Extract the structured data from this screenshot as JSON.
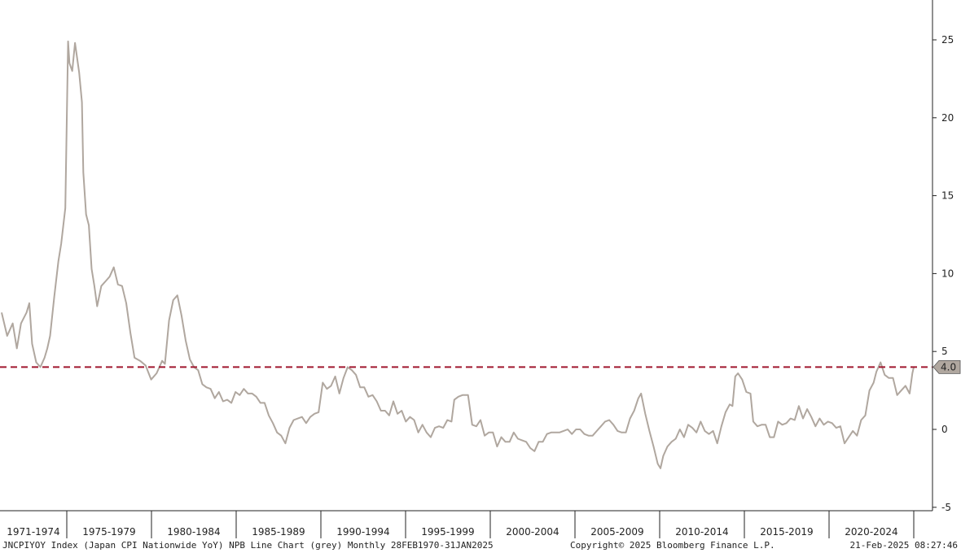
{
  "footer": {
    "left": "JNCPIYOY Index (Japan CPI Nationwide YoY) NPB Line Chart (grey)  Monthly 28FEB1970-31JAN2025",
    "copyright": "Copyright© 2025 Bloomberg Finance L.P.",
    "timestamp": "21-Feb-2025 08:27:46"
  },
  "colors": {
    "series": "#b0a79f",
    "reference_line": "#a0172e",
    "axis": "#222222",
    "marker_bg": "#b0a79f"
  },
  "chart_data": {
    "type": "line",
    "title": "",
    "xlabel": "",
    "ylabel": "",
    "grid": false,
    "legend": "none",
    "ylim": [
      -5,
      27.5
    ],
    "xlim": [
      "1970-02",
      "2025-01"
    ],
    "y_ticks": [
      -5,
      0,
      5,
      10,
      15,
      20,
      25
    ],
    "x_period_labels": [
      "1971-1974",
      "1975-1979",
      "1980-1984",
      "1985-1989",
      "1990-1994",
      "1995-1999",
      "2000-2004",
      "2005-2009",
      "2010-2014",
      "2015-2019",
      "2020-2024"
    ],
    "reference_line": {
      "value": 4.0,
      "label": "4.0"
    },
    "series": [
      {
        "points": [
          [
            "1970-02",
            7.5
          ],
          [
            "1970-06",
            6.0
          ],
          [
            "1970-10",
            6.8
          ],
          [
            "1971-01",
            5.2
          ],
          [
            "1971-04",
            6.8
          ],
          [
            "1971-08",
            7.5
          ],
          [
            "1971-10",
            8.1
          ],
          [
            "1971-12",
            5.5
          ],
          [
            "1972-03",
            4.3
          ],
          [
            "1972-06",
            4.0
          ],
          [
            "1972-09",
            4.6
          ],
          [
            "1972-11",
            5.2
          ],
          [
            "1973-01",
            6.0
          ],
          [
            "1973-04",
            8.5
          ],
          [
            "1973-07",
            10.8
          ],
          [
            "1973-09",
            11.9
          ],
          [
            "1973-12",
            14.2
          ],
          [
            "1974-02",
            24.9
          ],
          [
            "1974-03",
            23.5
          ],
          [
            "1974-05",
            23.0
          ],
          [
            "1974-07",
            24.8
          ],
          [
            "1974-10",
            22.9
          ],
          [
            "1974-12",
            21.0
          ],
          [
            "1975-01",
            16.5
          ],
          [
            "1975-03",
            13.8
          ],
          [
            "1975-05",
            13.1
          ],
          [
            "1975-07",
            10.3
          ],
          [
            "1975-09",
            9.2
          ],
          [
            "1975-11",
            7.9
          ],
          [
            "1976-02",
            9.2
          ],
          [
            "1976-05",
            9.5
          ],
          [
            "1976-08",
            9.8
          ],
          [
            "1976-11",
            10.4
          ],
          [
            "1977-02",
            9.3
          ],
          [
            "1977-05",
            9.2
          ],
          [
            "1977-08",
            8.1
          ],
          [
            "1977-11",
            6.2
          ],
          [
            "1978-02",
            4.6
          ],
          [
            "1978-06",
            4.4
          ],
          [
            "1978-10",
            4.1
          ],
          [
            "1979-02",
            3.2
          ],
          [
            "1979-06",
            3.6
          ],
          [
            "1979-10",
            4.4
          ],
          [
            "1979-12",
            4.2
          ],
          [
            "1980-03",
            7.0
          ],
          [
            "1980-06",
            8.3
          ],
          [
            "1980-09",
            8.6
          ],
          [
            "1980-12",
            7.3
          ],
          [
            "1981-03",
            5.7
          ],
          [
            "1981-06",
            4.5
          ],
          [
            "1981-09",
            4.0
          ],
          [
            "1981-12",
            3.8
          ],
          [
            "1982-03",
            2.9
          ],
          [
            "1982-06",
            2.7
          ],
          [
            "1982-09",
            2.6
          ],
          [
            "1982-12",
            2.0
          ],
          [
            "1983-03",
            2.4
          ],
          [
            "1983-06",
            1.8
          ],
          [
            "1983-09",
            1.9
          ],
          [
            "1983-12",
            1.7
          ],
          [
            "1984-03",
            2.4
          ],
          [
            "1984-06",
            2.2
          ],
          [
            "1984-09",
            2.6
          ],
          [
            "1984-12",
            2.3
          ],
          [
            "1985-03",
            2.3
          ],
          [
            "1985-06",
            2.1
          ],
          [
            "1985-09",
            1.7
          ],
          [
            "1985-12",
            1.7
          ],
          [
            "1986-03",
            0.9
          ],
          [
            "1986-06",
            0.4
          ],
          [
            "1986-09",
            -0.2
          ],
          [
            "1986-12",
            -0.4
          ],
          [
            "1987-03",
            -0.9
          ],
          [
            "1987-06",
            0.1
          ],
          [
            "1987-09",
            0.6
          ],
          [
            "1987-12",
            0.7
          ],
          [
            "1988-03",
            0.8
          ],
          [
            "1988-06",
            0.4
          ],
          [
            "1988-09",
            0.8
          ],
          [
            "1988-12",
            1.0
          ],
          [
            "1989-03",
            1.1
          ],
          [
            "1989-06",
            3.0
          ],
          [
            "1989-09",
            2.6
          ],
          [
            "1989-12",
            2.8
          ],
          [
            "1990-03",
            3.4
          ],
          [
            "1990-06",
            2.3
          ],
          [
            "1990-09",
            3.3
          ],
          [
            "1990-12",
            4.0
          ],
          [
            "1991-03",
            3.8
          ],
          [
            "1991-06",
            3.5
          ],
          [
            "1991-09",
            2.7
          ],
          [
            "1991-12",
            2.7
          ],
          [
            "1992-03",
            2.1
          ],
          [
            "1992-06",
            2.2
          ],
          [
            "1992-09",
            1.8
          ],
          [
            "1992-12",
            1.2
          ],
          [
            "1993-03",
            1.2
          ],
          [
            "1993-06",
            0.9
          ],
          [
            "1993-09",
            1.8
          ],
          [
            "1993-12",
            1.0
          ],
          [
            "1994-03",
            1.2
          ],
          [
            "1994-06",
            0.5
          ],
          [
            "1994-09",
            0.8
          ],
          [
            "1994-12",
            0.6
          ],
          [
            "1995-03",
            -0.2
          ],
          [
            "1995-06",
            0.3
          ],
          [
            "1995-09",
            -0.2
          ],
          [
            "1995-12",
            -0.5
          ],
          [
            "1996-03",
            0.1
          ],
          [
            "1996-06",
            0.2
          ],
          [
            "1996-09",
            0.1
          ],
          [
            "1996-12",
            0.6
          ],
          [
            "1997-03",
            0.5
          ],
          [
            "1997-05",
            1.9
          ],
          [
            "1997-08",
            2.1
          ],
          [
            "1997-11",
            2.2
          ],
          [
            "1998-03",
            2.2
          ],
          [
            "1998-06",
            0.3
          ],
          [
            "1998-09",
            0.2
          ],
          [
            "1998-12",
            0.6
          ],
          [
            "1999-03",
            -0.4
          ],
          [
            "1999-06",
            -0.2
          ],
          [
            "1999-09",
            -0.2
          ],
          [
            "1999-12",
            -1.1
          ],
          [
            "2000-03",
            -0.5
          ],
          [
            "2000-06",
            -0.8
          ],
          [
            "2000-09",
            -0.8
          ],
          [
            "2000-12",
            -0.2
          ],
          [
            "2001-03",
            -0.6
          ],
          [
            "2001-06",
            -0.7
          ],
          [
            "2001-09",
            -0.8
          ],
          [
            "2001-12",
            -1.2
          ],
          [
            "2002-03",
            -1.4
          ],
          [
            "2002-06",
            -0.8
          ],
          [
            "2002-09",
            -0.8
          ],
          [
            "2002-12",
            -0.3
          ],
          [
            "2003-03",
            -0.2
          ],
          [
            "2003-06",
            -0.2
          ],
          [
            "2003-09",
            -0.2
          ],
          [
            "2003-12",
            -0.1
          ],
          [
            "2004-03",
            0.0
          ],
          [
            "2004-06",
            -0.3
          ],
          [
            "2004-09",
            0.0
          ],
          [
            "2004-12",
            0.0
          ],
          [
            "2005-03",
            -0.3
          ],
          [
            "2005-06",
            -0.4
          ],
          [
            "2005-09",
            -0.4
          ],
          [
            "2005-12",
            -0.1
          ],
          [
            "2006-03",
            0.2
          ],
          [
            "2006-06",
            0.5
          ],
          [
            "2006-09",
            0.6
          ],
          [
            "2006-12",
            0.3
          ],
          [
            "2007-03",
            -0.1
          ],
          [
            "2007-06",
            -0.2
          ],
          [
            "2007-09",
            -0.2
          ],
          [
            "2007-12",
            0.7
          ],
          [
            "2008-03",
            1.2
          ],
          [
            "2008-06",
            2.0
          ],
          [
            "2008-08",
            2.3
          ],
          [
            "2008-11",
            1.0
          ],
          [
            "2009-02",
            -0.1
          ],
          [
            "2009-05",
            -1.1
          ],
          [
            "2009-08",
            -2.2
          ],
          [
            "2009-10",
            -2.5
          ],
          [
            "2009-12",
            -1.7
          ],
          [
            "2010-03",
            -1.1
          ],
          [
            "2010-06",
            -0.8
          ],
          [
            "2010-09",
            -0.6
          ],
          [
            "2010-12",
            0.0
          ],
          [
            "2011-03",
            -0.5
          ],
          [
            "2011-06",
            0.3
          ],
          [
            "2011-09",
            0.1
          ],
          [
            "2011-12",
            -0.2
          ],
          [
            "2012-03",
            0.5
          ],
          [
            "2012-06",
            -0.1
          ],
          [
            "2012-09",
            -0.3
          ],
          [
            "2012-12",
            -0.1
          ],
          [
            "2013-03",
            -0.9
          ],
          [
            "2013-06",
            0.2
          ],
          [
            "2013-09",
            1.1
          ],
          [
            "2013-12",
            1.6
          ],
          [
            "2014-02",
            1.5
          ],
          [
            "2014-04",
            3.4
          ],
          [
            "2014-06",
            3.6
          ],
          [
            "2014-09",
            3.2
          ],
          [
            "2014-12",
            2.4
          ],
          [
            "2015-03",
            2.3
          ],
          [
            "2015-05",
            0.5
          ],
          [
            "2015-08",
            0.2
          ],
          [
            "2015-11",
            0.3
          ],
          [
            "2016-02",
            0.3
          ],
          [
            "2016-05",
            -0.5
          ],
          [
            "2016-08",
            -0.5
          ],
          [
            "2016-11",
            0.5
          ],
          [
            "2017-02",
            0.3
          ],
          [
            "2017-05",
            0.4
          ],
          [
            "2017-08",
            0.7
          ],
          [
            "2017-11",
            0.6
          ],
          [
            "2018-02",
            1.5
          ],
          [
            "2018-05",
            0.7
          ],
          [
            "2018-08",
            1.3
          ],
          [
            "2018-11",
            0.8
          ],
          [
            "2019-02",
            0.2
          ],
          [
            "2019-05",
            0.7
          ],
          [
            "2019-08",
            0.3
          ],
          [
            "2019-11",
            0.5
          ],
          [
            "2020-02",
            0.4
          ],
          [
            "2020-05",
            0.1
          ],
          [
            "2020-08",
            0.2
          ],
          [
            "2020-11",
            -0.9
          ],
          [
            "2021-02",
            -0.5
          ],
          [
            "2021-05",
            -0.1
          ],
          [
            "2021-08",
            -0.4
          ],
          [
            "2021-11",
            0.6
          ],
          [
            "2022-02",
            0.9
          ],
          [
            "2022-05",
            2.5
          ],
          [
            "2022-08",
            3.0
          ],
          [
            "2022-10",
            3.7
          ],
          [
            "2023-01",
            4.3
          ],
          [
            "2023-04",
            3.5
          ],
          [
            "2023-07",
            3.3
          ],
          [
            "2023-10",
            3.3
          ],
          [
            "2024-01",
            2.2
          ],
          [
            "2024-04",
            2.5
          ],
          [
            "2024-07",
            2.8
          ],
          [
            "2024-10",
            2.3
          ],
          [
            "2024-12",
            3.6
          ],
          [
            "2025-01",
            4.0
          ]
        ]
      }
    ]
  }
}
